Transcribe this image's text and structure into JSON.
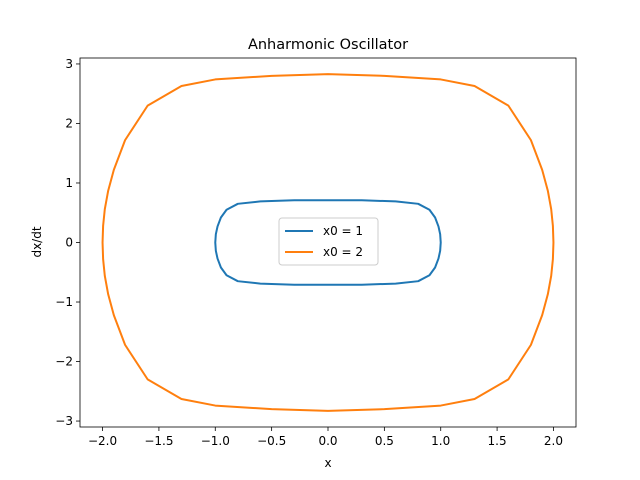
{
  "chart_data": {
    "type": "line",
    "title": "Anharmonic Oscillator",
    "xlabel": "x",
    "ylabel": "dx/dt",
    "xlim": [
      -2.2,
      2.2
    ],
    "ylim": [
      -3.1,
      3.1
    ],
    "xticks": [
      -2.0,
      -1.5,
      -1.0,
      -0.5,
      0.0,
      0.5,
      1.0,
      1.5,
      2.0
    ],
    "xtick_labels": [
      "−2.0",
      "−1.5",
      "−1.0",
      "−0.5",
      "0.0",
      "0.5",
      "1.0",
      "1.5",
      "2.0"
    ],
    "yticks": [
      -3,
      -2,
      -1,
      0,
      1,
      2,
      3
    ],
    "ytick_labels": [
      "−3",
      "−2",
      "−1",
      "0",
      "1",
      "2",
      "3"
    ],
    "grid": false,
    "legend_position": "center",
    "series": [
      {
        "name": "x0 = 1",
        "color": "#1f77b4",
        "x": [
          1.0,
          0.995,
          0.98,
          0.95,
          0.9,
          0.8,
          0.6,
          0.3,
          0.0,
          -0.3,
          -0.6,
          -0.8,
          -0.9,
          -0.95,
          -0.98,
          -0.995,
          -1.0,
          -0.995,
          -0.98,
          -0.95,
          -0.9,
          -0.8,
          -0.6,
          -0.3,
          0.0,
          0.3,
          0.6,
          0.8,
          0.9,
          0.95,
          0.98,
          0.995,
          1.0
        ],
        "y": [
          0.0,
          0.14,
          0.27,
          0.42,
          0.55,
          0.65,
          0.69,
          0.71,
          0.71,
          0.71,
          0.69,
          0.65,
          0.55,
          0.42,
          0.27,
          0.14,
          0.0,
          -0.14,
          -0.27,
          -0.42,
          -0.55,
          -0.65,
          -0.69,
          -0.71,
          -0.71,
          -0.71,
          -0.69,
          -0.65,
          -0.55,
          -0.42,
          -0.27,
          -0.14,
          0.0
        ]
      },
      {
        "name": "x0 = 2",
        "color": "#ff7f0e",
        "x": [
          2.0,
          1.995,
          1.98,
          1.95,
          1.9,
          1.8,
          1.6,
          1.3,
          1.0,
          0.5,
          0.0,
          -0.5,
          -1.0,
          -1.3,
          -1.6,
          -1.8,
          -1.9,
          -1.95,
          -1.98,
          -1.995,
          -2.0,
          -1.995,
          -1.98,
          -1.95,
          -1.9,
          -1.8,
          -1.6,
          -1.3,
          -1.0,
          -0.5,
          0.0,
          0.5,
          1.0,
          1.3,
          1.6,
          1.8,
          1.9,
          1.95,
          1.98,
          1.995,
          2.0
        ],
        "y": [
          0.0,
          0.28,
          0.56,
          0.87,
          1.22,
          1.72,
          2.3,
          2.63,
          2.74,
          2.8,
          2.83,
          2.8,
          2.74,
          2.63,
          2.3,
          1.72,
          1.22,
          0.87,
          0.56,
          0.28,
          0.0,
          -0.28,
          -0.56,
          -0.87,
          -1.22,
          -1.72,
          -2.3,
          -2.63,
          -2.74,
          -2.8,
          -2.83,
          -2.8,
          -2.74,
          -2.63,
          -2.3,
          -1.72,
          -1.22,
          -0.87,
          -0.56,
          -0.28,
          0.0
        ]
      }
    ]
  }
}
